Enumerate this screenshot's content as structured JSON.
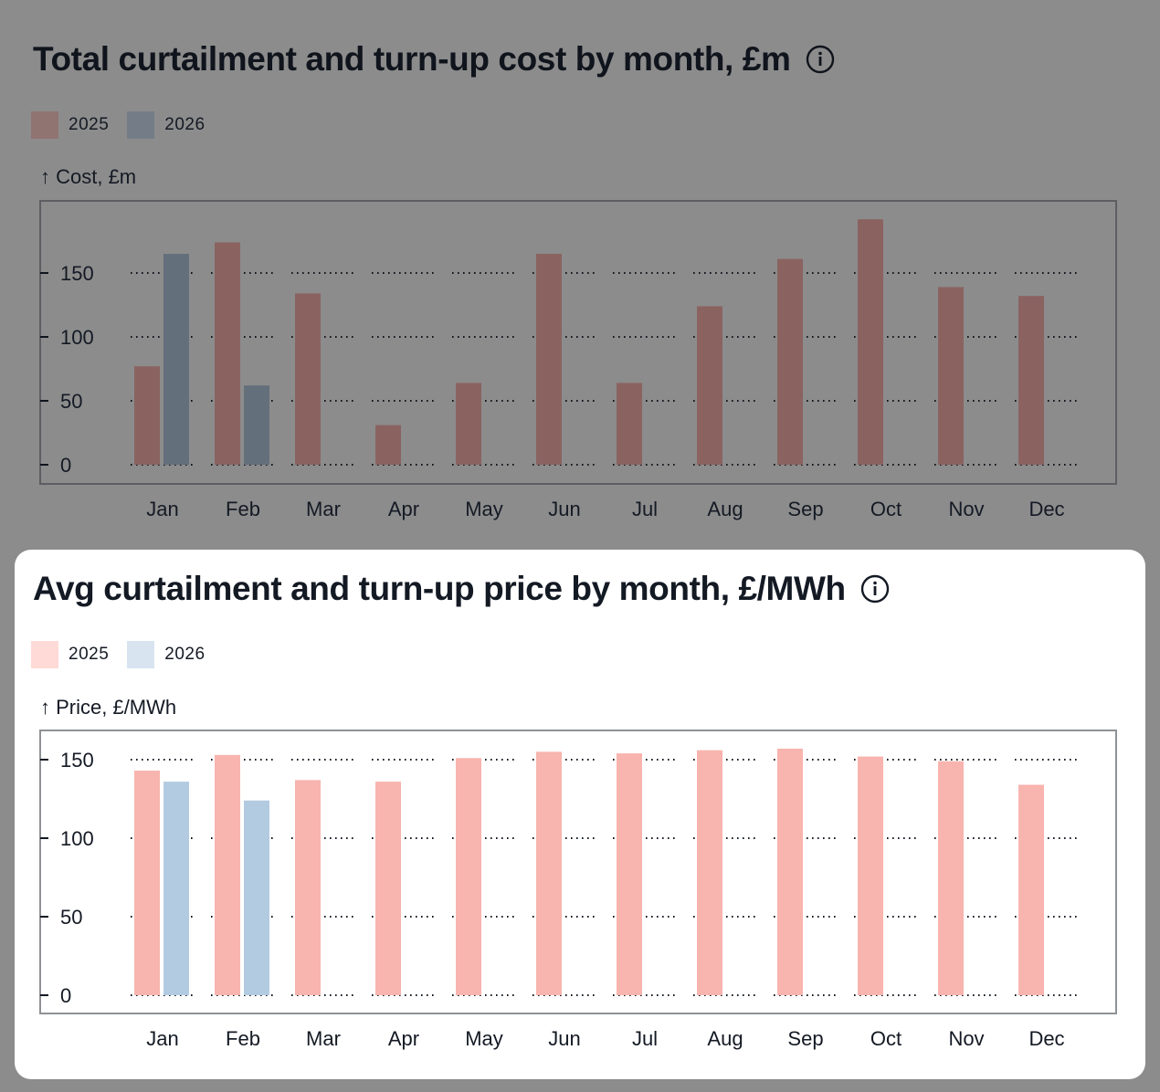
{
  "chart_data": [
    {
      "type": "bar",
      "title": "Total curtailment and turn-up cost by month, £m",
      "xlabel": "",
      "ylabel": "↑ Cost, £m",
      "ylim": [
        0,
        200
      ],
      "yticks": [
        0,
        50,
        100,
        150
      ],
      "grid": true,
      "grid_style": "dotted",
      "legend_position": "top-left",
      "categories": [
        "Jan",
        "Feb",
        "Mar",
        "Apr",
        "May",
        "Jun",
        "Jul",
        "Aug",
        "Sep",
        "Oct",
        "Nov",
        "Dec"
      ],
      "series": [
        {
          "name": "2025",
          "color": "#8a6361",
          "values": [
            77,
            174,
            134,
            31,
            64,
            165,
            64,
            124,
            161,
            192,
            139,
            132
          ]
        },
        {
          "name": "2026",
          "color": "#646f7c",
          "values": [
            165,
            62,
            null,
            null,
            null,
            null,
            null,
            null,
            null,
            null,
            null,
            null
          ]
        }
      ],
      "legend_colors": {
        "2025": "#907472",
        "2026": "#747d87"
      },
      "dimmed": true
    },
    {
      "type": "bar",
      "title": "Avg curtailment and turn-up price by month, £/MWh",
      "xlabel": "",
      "ylabel": "↑ Price, £/MWh",
      "ylim": [
        0,
        168
      ],
      "yticks": [
        0,
        50,
        100,
        150
      ],
      "grid": true,
      "grid_style": "dotted",
      "legend_position": "top-left",
      "categories": [
        "Jan",
        "Feb",
        "Mar",
        "Apr",
        "May",
        "Jun",
        "Jul",
        "Aug",
        "Sep",
        "Oct",
        "Nov",
        "Dec"
      ],
      "series": [
        {
          "name": "2025",
          "color": "#f8b4ae",
          "values": [
            143,
            153,
            137,
            136,
            151,
            155,
            154,
            156,
            157,
            152,
            149,
            134
          ]
        },
        {
          "name": "2026",
          "color": "#b3cbe1",
          "values": [
            136,
            124,
            null,
            null,
            null,
            null,
            null,
            null,
            null,
            null,
            null,
            null
          ]
        }
      ],
      "legend_colors": {
        "2025": "#ffdad7",
        "2026": "#d8e5f1"
      },
      "dimmed": false
    }
  ],
  "icons": {
    "info": "info-circle-icon"
  }
}
